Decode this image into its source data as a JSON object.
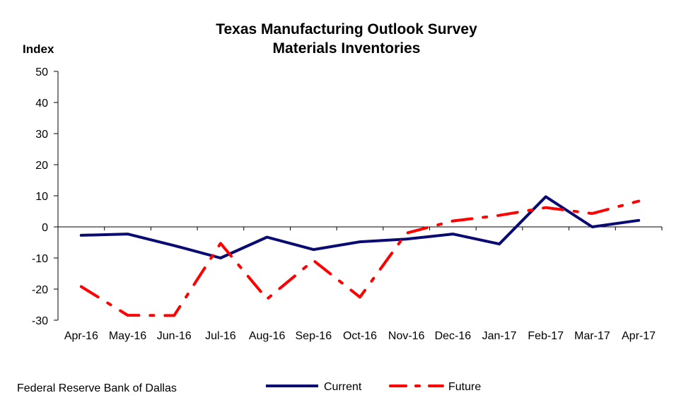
{
  "chart_data": {
    "type": "line",
    "title": "Texas Manufacturing Outlook Survey",
    "subtitle": "Materials Inventories",
    "ylabel": "Index",
    "ylim": [
      -30,
      50
    ],
    "yticks": [
      50,
      40,
      30,
      20,
      10,
      0,
      -10,
      -20,
      -30
    ],
    "categories": [
      "Apr-16",
      "May-16",
      "Jun-16",
      "Jul-16",
      "Aug-16",
      "Sep-16",
      "Oct-16",
      "Nov-16",
      "Dec-16",
      "Jan-17",
      "Feb-17",
      "Mar-17",
      "Apr-17"
    ],
    "grid": false,
    "legend_position": "bottom",
    "series": [
      {
        "name": "Current",
        "color": "#0a0a73",
        "style": "solid",
        "values": [
          -2.7,
          -2.3,
          -6.0,
          -10.0,
          -3.3,
          -7.3,
          -4.8,
          -3.9,
          -2.3,
          -5.5,
          9.7,
          0.0,
          2.1
        ]
      },
      {
        "name": "Future",
        "color": "#ff0000",
        "style": "dash-dot",
        "values": [
          -19.2,
          -28.4,
          -28.5,
          -5.3,
          -23.2,
          -10.8,
          -22.6,
          -2.0,
          1.9,
          3.7,
          6.2,
          4.3,
          8.3
        ]
      }
    ]
  },
  "footer": {
    "source": "Federal Reserve Bank of Dallas"
  }
}
